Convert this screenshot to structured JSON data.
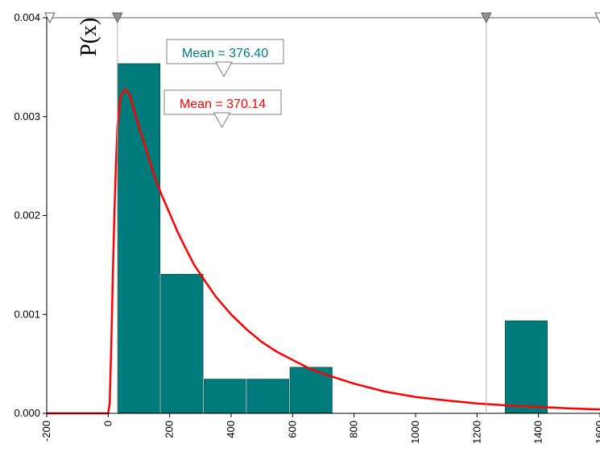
{
  "chart_data": {
    "type": "bar",
    "ylabel": "P(x)",
    "xlim": [
      -200,
      1600
    ],
    "ylim": [
      0,
      0.004
    ],
    "x_ticks": [
      "-200",
      "0",
      "200",
      "400",
      "600",
      "800",
      "1000",
      "1200",
      "1400",
      "1600"
    ],
    "y_ticks": [
      "0.000",
      "0.001",
      "0.002",
      "0.003",
      "0.004"
    ],
    "histogram": {
      "color": "#007b7b",
      "bins": [
        {
          "x0": 30,
          "x1": 170,
          "density": 0.00354
        },
        {
          "x0": 170,
          "x1": 310,
          "density": 0.00141
        },
        {
          "x0": 310,
          "x1": 450,
          "density": 0.00035
        },
        {
          "x0": 450,
          "x1": 590,
          "density": 0.00035
        },
        {
          "x0": 590,
          "x1": 730,
          "density": 0.00047
        },
        {
          "x0": 1290,
          "x1": 1430,
          "density": 0.00094
        }
      ]
    },
    "fitted_curve": {
      "color": "#ff0000",
      "points": [
        [
          -200,
          0
        ],
        [
          0,
          0
        ],
        [
          5,
          0.0001
        ],
        [
          10,
          0.0007
        ],
        [
          15,
          0.0014
        ],
        [
          20,
          0.002
        ],
        [
          25,
          0.0025
        ],
        [
          30,
          0.0029
        ],
        [
          40,
          0.0032
        ],
        [
          55,
          0.00328
        ],
        [
          70,
          0.00322
        ],
        [
          90,
          0.003
        ],
        [
          110,
          0.0028
        ],
        [
          130,
          0.0026
        ],
        [
          150,
          0.0024
        ],
        [
          175,
          0.0022
        ],
        [
          200,
          0.00202
        ],
        [
          225,
          0.00184
        ],
        [
          250,
          0.00168
        ],
        [
          280,
          0.0015
        ],
        [
          310,
          0.00136
        ],
        [
          350,
          0.00118
        ],
        [
          400,
          0.001
        ],
        [
          450,
          0.00085
        ],
        [
          500,
          0.00072
        ],
        [
          550,
          0.00062
        ],
        [
          600,
          0.00054
        ],
        [
          650,
          0.00046
        ],
        [
          700,
          0.0004
        ],
        [
          800,
          0.0003
        ],
        [
          900,
          0.00022
        ],
        [
          1000,
          0.000165
        ],
        [
          1100,
          0.00013
        ],
        [
          1200,
          0.0001
        ],
        [
          1300,
          8e-05
        ],
        [
          1400,
          6.5e-05
        ],
        [
          1500,
          5e-05
        ],
        [
          1600,
          4e-05
        ]
      ]
    },
    "markers": [
      {
        "label": "Mean = 376.40",
        "x": 376.4,
        "color": "#007b7b"
      },
      {
        "label": "Mean = 370.14",
        "x": 370.14,
        "color": "#ff0000"
      }
    ],
    "range_markers_x": [
      -190,
      30,
      1230,
      1600
    ]
  }
}
